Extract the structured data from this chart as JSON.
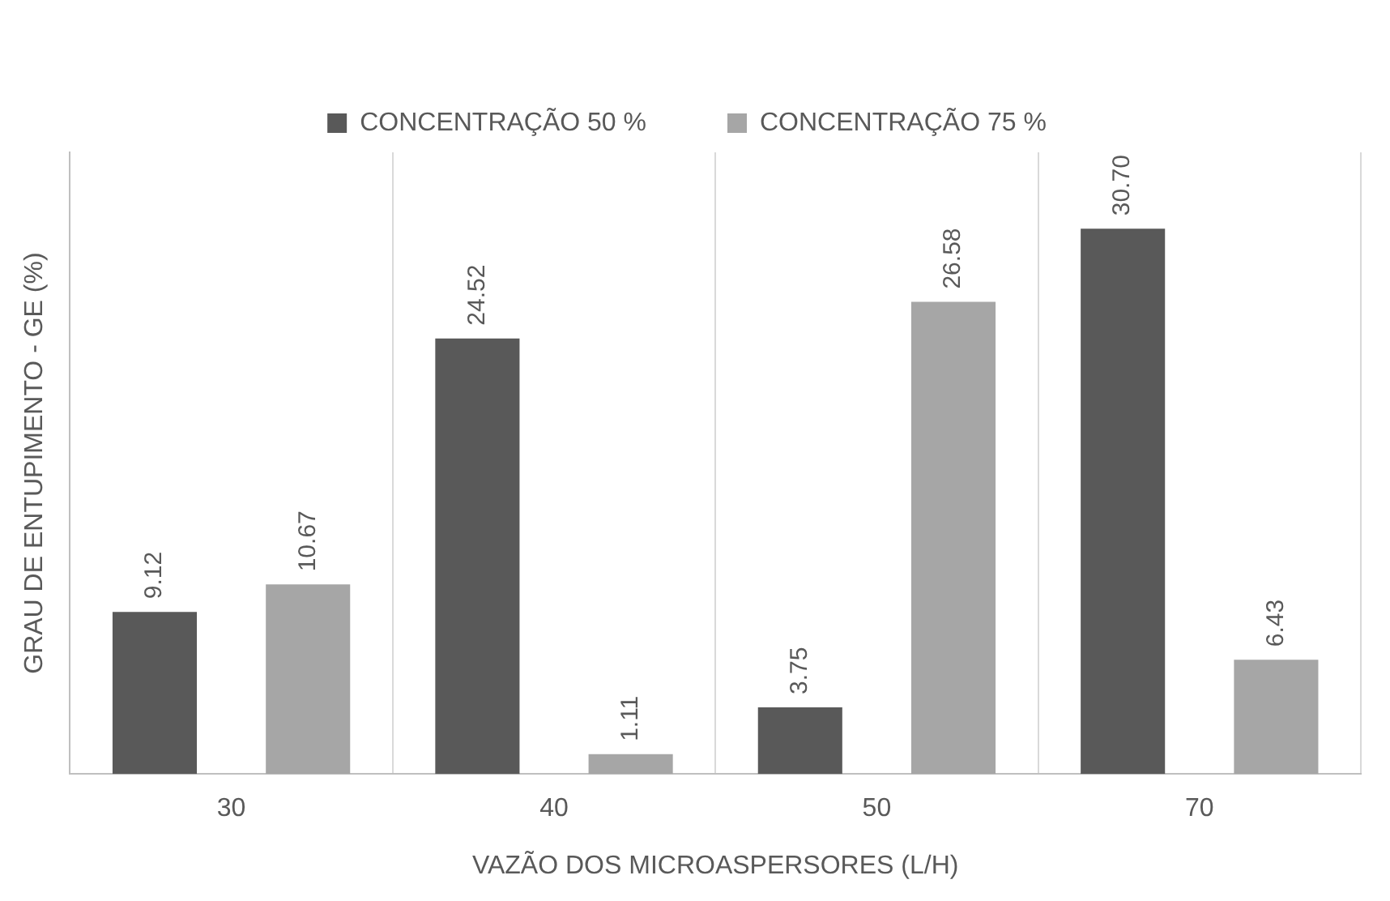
{
  "chart_data": {
    "type": "bar",
    "xlabel": "VAZÃO DOS MICROASPERSORES (L/H)",
    "ylabel": "GRAU DE ENTUPIMENTO - GE (%)",
    "categories": [
      "30",
      "40",
      "50",
      "70"
    ],
    "series": [
      {
        "name": "CONCENTRAÇÃO 50 %",
        "color": "#595959",
        "values": [
          9.12,
          24.52,
          3.75,
          30.7
        ],
        "value_labels": [
          "9.12",
          "24.52",
          "3.75",
          "30.70"
        ]
      },
      {
        "name": "CONCENTRAÇÃO 75 %",
        "color": "#a6a6a6",
        "values": [
          10.67,
          1.11,
          26.58,
          6.43
        ],
        "value_labels": [
          "10.67",
          "1.11",
          "26.58",
          "6.43"
        ]
      }
    ],
    "grid": "x",
    "legend": "top"
  }
}
